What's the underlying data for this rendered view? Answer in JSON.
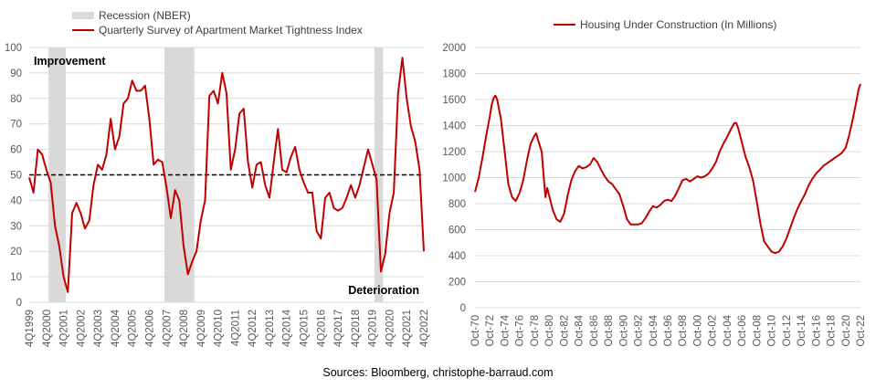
{
  "source_note": "Sources: Bloomberg, christophe-barraud.com",
  "colors": {
    "line": "#C00000",
    "recession": "#D9D9D9",
    "grid": "#D9D9D9",
    "threshold": "#000000"
  },
  "chart_data": [
    {
      "type": "line",
      "title": "",
      "xlabel": "",
      "ylabel": "",
      "ylim": [
        0,
        100
      ],
      "yticks": [
        0,
        10,
        20,
        30,
        40,
        50,
        60,
        70,
        80,
        90,
        100
      ],
      "grid": true,
      "legend_position": "top-left",
      "x_start": "4Q1999",
      "xtick_labels": [
        "4Q1999",
        "4Q2000",
        "4Q2001",
        "4Q2002",
        "4Q2003",
        "4Q2004",
        "4Q2005",
        "4Q2006",
        "4Q2007",
        "4Q2008",
        "4Q2009",
        "4Q2010",
        "4Q2011",
        "4Q2012",
        "4Q2013",
        "4Q2014",
        "4Q2015",
        "4Q2016",
        "4Q2017",
        "4Q2018",
        "4Q2019",
        "4Q2020",
        "4Q2021",
        "4Q2022"
      ],
      "recession_label": "Recession (NBER)",
      "recessions": [
        [
          "1Q2001",
          "4Q2001"
        ],
        [
          "4Q2007",
          "2Q2009"
        ],
        [
          "1Q2020",
          "2Q2020"
        ]
      ],
      "threshold": 50,
      "annotations": [
        {
          "text": "Improvement",
          "anchor": "top-left"
        },
        {
          "text": "Deterioration",
          "anchor": "bottom-right"
        }
      ],
      "series": [
        {
          "name": "Quarterly Survey of Apartment Market Tightness Index",
          "values": [
            49,
            43,
            60,
            58,
            52,
            47,
            30,
            22,
            10,
            4,
            35,
            39,
            35,
            29,
            32,
            46,
            54,
            52,
            58,
            72,
            60,
            65,
            78,
            80,
            87,
            83,
            83,
            85,
            72,
            54,
            56,
            55,
            45,
            33,
            44,
            40,
            22,
            11,
            16,
            20,
            32,
            40,
            81,
            83,
            78,
            90,
            82,
            52,
            60,
            74,
            76,
            55,
            45,
            54,
            55,
            46,
            41,
            55,
            68,
            52,
            51,
            57,
            61,
            52,
            47,
            43,
            43,
            28,
            25,
            41,
            43,
            37,
            36,
            37,
            41,
            46,
            41,
            46,
            53,
            60,
            54,
            48,
            12,
            19,
            35,
            43,
            82,
            96,
            80,
            69,
            63,
            52,
            20
          ]
        }
      ]
    },
    {
      "type": "line",
      "title": "",
      "xlabel": "",
      "ylabel": "",
      "ylim": [
        0,
        2000
      ],
      "yticks": [
        0,
        200,
        400,
        600,
        800,
        1000,
        1200,
        1400,
        1600,
        1800,
        2000
      ],
      "grid": true,
      "legend_position": "top-center",
      "x_start": "Oct-70",
      "xtick_labels": [
        "Oct-70",
        "Oct-72",
        "Oct-74",
        "Oct-76",
        "Oct-78",
        "Oct-80",
        "Oct-82",
        "Oct-84",
        "Oct-86",
        "Oct-88",
        "Oct-90",
        "Oct-92",
        "Oct-94",
        "Oct-96",
        "Oct-98",
        "Oct-00",
        "Oct-02",
        "Oct-04",
        "Oct-06",
        "Oct-08",
        "Oct-10",
        "Oct-12",
        "Oct-14",
        "Oct-16",
        "Oct-18",
        "Oct-20",
        "Oct-22"
      ],
      "series": [
        {
          "name": "Housing Under Construction (In Millions)",
          "points": [
            [
              1970.75,
              890
            ],
            [
              1971.25,
              1000
            ],
            [
              1971.75,
              1150
            ],
            [
              1972.25,
              1320
            ],
            [
              1972.75,
              1470
            ],
            [
              1973.0,
              1560
            ],
            [
              1973.25,
              1610
            ],
            [
              1973.5,
              1630
            ],
            [
              1973.75,
              1600
            ],
            [
              1974.25,
              1450
            ],
            [
              1974.75,
              1200
            ],
            [
              1975.25,
              950
            ],
            [
              1975.75,
              850
            ],
            [
              1976.25,
              820
            ],
            [
              1976.75,
              880
            ],
            [
              1977.25,
              980
            ],
            [
              1977.75,
              1130
            ],
            [
              1978.25,
              1260
            ],
            [
              1978.75,
              1320
            ],
            [
              1979.0,
              1340
            ],
            [
              1979.25,
              1290
            ],
            [
              1979.75,
              1200
            ],
            [
              1980.0,
              1020
            ],
            [
              1980.25,
              850
            ],
            [
              1980.5,
              920
            ],
            [
              1980.75,
              860
            ],
            [
              1981.25,
              750
            ],
            [
              1981.75,
              680
            ],
            [
              1982.25,
              660
            ],
            [
              1982.75,
              720
            ],
            [
              1983.25,
              860
            ],
            [
              1983.75,
              980
            ],
            [
              1984.25,
              1050
            ],
            [
              1984.75,
              1090
            ],
            [
              1985.25,
              1070
            ],
            [
              1985.75,
              1080
            ],
            [
              1986.25,
              1100
            ],
            [
              1986.75,
              1150
            ],
            [
              1987.25,
              1120
            ],
            [
              1987.75,
              1060
            ],
            [
              1988.25,
              1010
            ],
            [
              1988.75,
              970
            ],
            [
              1989.25,
              950
            ],
            [
              1989.75,
              910
            ],
            [
              1990.25,
              870
            ],
            [
              1990.75,
              780
            ],
            [
              1991.25,
              680
            ],
            [
              1991.75,
              640
            ],
            [
              1992.25,
              640
            ],
            [
              1992.75,
              640
            ],
            [
              1993.25,
              650
            ],
            [
              1993.75,
              690
            ],
            [
              1994.25,
              740
            ],
            [
              1994.75,
              780
            ],
            [
              1995.25,
              770
            ],
            [
              1995.75,
              790
            ],
            [
              1996.25,
              820
            ],
            [
              1996.75,
              830
            ],
            [
              1997.25,
              820
            ],
            [
              1997.75,
              860
            ],
            [
              1998.25,
              920
            ],
            [
              1998.75,
              980
            ],
            [
              1999.25,
              990
            ],
            [
              1999.75,
              970
            ],
            [
              2000.25,
              990
            ],
            [
              2000.75,
              1010
            ],
            [
              2001.25,
              1000
            ],
            [
              2001.75,
              1010
            ],
            [
              2002.25,
              1030
            ],
            [
              2002.75,
              1070
            ],
            [
              2003.25,
              1120
            ],
            [
              2003.75,
              1200
            ],
            [
              2004.25,
              1260
            ],
            [
              2004.75,
              1310
            ],
            [
              2005.25,
              1370
            ],
            [
              2005.75,
              1420
            ],
            [
              2006.0,
              1420
            ],
            [
              2006.25,
              1380
            ],
            [
              2006.75,
              1270
            ],
            [
              2007.25,
              1160
            ],
            [
              2007.75,
              1080
            ],
            [
              2008.25,
              980
            ],
            [
              2008.75,
              820
            ],
            [
              2009.25,
              650
            ],
            [
              2009.75,
              510
            ],
            [
              2010.25,
              470
            ],
            [
              2010.75,
              430
            ],
            [
              2011.25,
              420
            ],
            [
              2011.75,
              430
            ],
            [
              2012.25,
              470
            ],
            [
              2012.75,
              530
            ],
            [
              2013.25,
              610
            ],
            [
              2013.75,
              690
            ],
            [
              2014.25,
              760
            ],
            [
              2014.75,
              820
            ],
            [
              2015.25,
              870
            ],
            [
              2015.75,
              940
            ],
            [
              2016.25,
              990
            ],
            [
              2016.75,
              1030
            ],
            [
              2017.25,
              1060
            ],
            [
              2017.75,
              1090
            ],
            [
              2018.25,
              1110
            ],
            [
              2018.75,
              1130
            ],
            [
              2019.25,
              1150
            ],
            [
              2019.75,
              1170
            ],
            [
              2020.25,
              1190
            ],
            [
              2020.75,
              1230
            ],
            [
              2021.25,
              1330
            ],
            [
              2021.75,
              1460
            ],
            [
              2022.25,
              1600
            ],
            [
              2022.5,
              1680
            ],
            [
              2022.75,
              1720
            ]
          ]
        }
      ]
    }
  ]
}
